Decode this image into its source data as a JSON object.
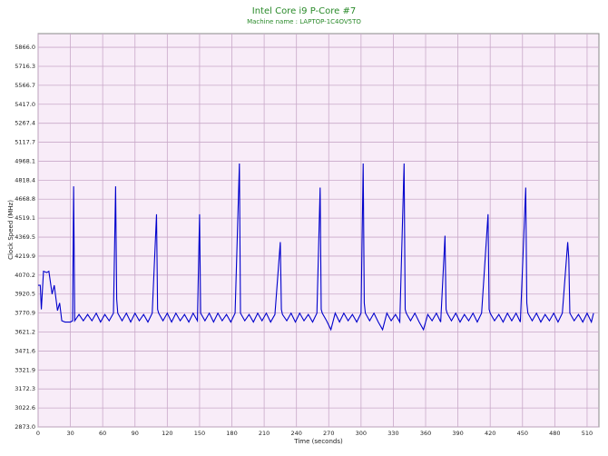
{
  "chart_data": {
    "type": "line",
    "title": "Intel Core i9 P-Core #7",
    "subtitle": "Machine name : LAPTOP-1C4OV5TO",
    "x_label": "Time (seconds)",
    "y_label": "Clock Speed (MHz)",
    "grid": true,
    "xlim": [
      0,
      521
    ],
    "ylim": [
      2873,
      5974
    ],
    "xticks": [
      0,
      30,
      60,
      90,
      120,
      150,
      180,
      210,
      240,
      270,
      300,
      330,
      360,
      390,
      420,
      450,
      480,
      510
    ],
    "yticks": [
      {
        "value": 2873,
        "label": "2873.0"
      },
      3022.6,
      3172.3,
      3321.9,
      3471.6,
      3621.2,
      3770.9,
      3920.5,
      4070.2,
      4219.9,
      4369.5,
      4519.1,
      4668.8,
      4818.4,
      4968.1,
      5117.7,
      5267.4,
      {
        "value": 5417,
        "label": "5417.0"
      },
      5566.7,
      5716.3,
      {
        "value": 5866,
        "label": "5866.0"
      }
    ],
    "series": [
      {
        "color": "#0000cc",
        "x": [
          0,
          2,
          3,
          5,
          8,
          10,
          13,
          15,
          18,
          20,
          22,
          25,
          30,
          32,
          33,
          34,
          38,
          42,
          46,
          50,
          54,
          58,
          62,
          66,
          70,
          72,
          73,
          74,
          78,
          82,
          86,
          90,
          94,
          98,
          102,
          106,
          110,
          111,
          112,
          116,
          120,
          124,
          128,
          132,
          136,
          140,
          144,
          148,
          150,
          151,
          155,
          159,
          163,
          167,
          171,
          175,
          179,
          183,
          187,
          188,
          192,
          196,
          200,
          204,
          208,
          212,
          216,
          220,
          225,
          226,
          227,
          231,
          235,
          239,
          243,
          247,
          251,
          255,
          259,
          262,
          263,
          264,
          268,
          272,
          276,
          280,
          284,
          288,
          292,
          296,
          300,
          302,
          303,
          304,
          308,
          312,
          316,
          320,
          324,
          328,
          332,
          336,
          340,
          341,
          342,
          346,
          350,
          354,
          358,
          362,
          366,
          370,
          374,
          378,
          379,
          380,
          384,
          388,
          392,
          396,
          400,
          404,
          408,
          412,
          418,
          419,
          420,
          424,
          428,
          432,
          436,
          440,
          444,
          448,
          453,
          454,
          455,
          459,
          463,
          467,
          471,
          475,
          479,
          483,
          487,
          492,
          493,
          494,
          498,
          502,
          506,
          510,
          514,
          516
        ],
        "values": [
          3990,
          3990,
          3800,
          4100,
          4090,
          4100,
          3920,
          3990,
          3790,
          3850,
          3710,
          3700,
          3700,
          3710,
          4770,
          3710,
          3760,
          3710,
          3760,
          3710,
          3770,
          3700,
          3760,
          3710,
          3770,
          4770,
          3880,
          3770,
          3710,
          3770,
          3700,
          3770,
          3710,
          3760,
          3700,
          3770,
          4550,
          3800,
          3770,
          3710,
          3770,
          3700,
          3770,
          3710,
          3760,
          3700,
          3770,
          3710,
          4550,
          3770,
          3710,
          3770,
          3700,
          3770,
          3710,
          3760,
          3700,
          3770,
          4950,
          3770,
          3710,
          3760,
          3700,
          3770,
          3710,
          3770,
          3700,
          3760,
          4330,
          3800,
          3760,
          3710,
          3770,
          3700,
          3770,
          3710,
          3760,
          3700,
          3770,
          4760,
          3800,
          3770,
          3710,
          3640,
          3770,
          3700,
          3770,
          3710,
          3760,
          3700,
          3770,
          4950,
          3850,
          3770,
          3710,
          3770,
          3700,
          3640,
          3770,
          3710,
          3760,
          3700,
          4950,
          3800,
          3770,
          3710,
          3770,
          3700,
          3640,
          3760,
          3710,
          3770,
          3700,
          4380,
          3800,
          3770,
          3710,
          3770,
          3700,
          3760,
          3710,
          3770,
          3700,
          3770,
          4550,
          3800,
          3770,
          3710,
          3760,
          3700,
          3770,
          3710,
          3770,
          3700,
          4760,
          3850,
          3770,
          3710,
          3770,
          3700,
          3760,
          3710,
          3770,
          3700,
          3770,
          4330,
          4200,
          3770,
          3710,
          3760,
          3700,
          3770,
          3700,
          3770
        ]
      }
    ]
  }
}
